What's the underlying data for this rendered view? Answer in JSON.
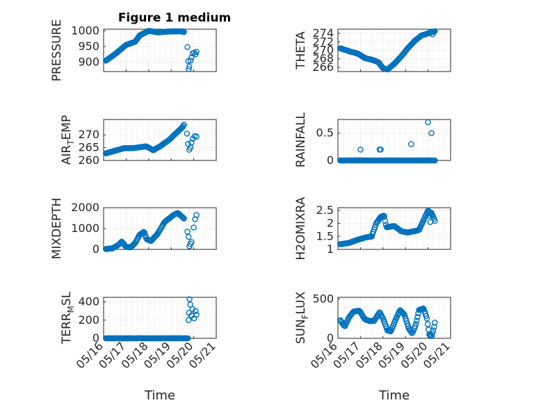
{
  "figure_title": "Figure 1 medium",
  "marker_color": "#0072BD",
  "chart_data": [
    {
      "id": "pressure",
      "type": "scatter",
      "ylabel": "PRESSURE",
      "title": "Figure 1 medium",
      "xlim": [
        0,
        5
      ],
      "ylim": [
        870,
        1005
      ],
      "yticks": [
        900,
        950,
        1000
      ],
      "gaps": [
        [
          3.6,
          3.85
        ]
      ],
      "keys": [
        [
          0.1,
          905
        ],
        [
          0.5,
          925
        ],
        [
          1.0,
          955
        ],
        [
          1.4,
          965
        ],
        [
          1.6,
          985
        ],
        [
          2.0,
          1000
        ],
        [
          2.4,
          995
        ],
        [
          3.0,
          998
        ],
        [
          3.5,
          998
        ],
        [
          3.6,
          995
        ]
      ],
      "extra": [
        [
          3.72,
          948
        ],
        [
          3.76,
          903
        ],
        [
          3.78,
          878
        ],
        [
          3.8,
          886
        ],
        [
          3.86,
          905
        ],
        [
          3.9,
          915
        ],
        [
          3.95,
          928
        ],
        [
          4.02,
          930
        ],
        [
          4.08,
          925
        ],
        [
          4.12,
          933
        ]
      ]
    },
    {
      "id": "theta",
      "type": "scatter",
      "ylabel": "THETA",
      "xlim": [
        0,
        5
      ],
      "ylim": [
        265,
        275
      ],
      "yticks": [
        266,
        268,
        270,
        272,
        274
      ],
      "keys": [
        [
          0.1,
          270.5
        ],
        [
          0.5,
          269.8
        ],
        [
          0.9,
          269.2
        ],
        [
          1.2,
          268.2
        ],
        [
          1.5,
          267.8
        ],
        [
          1.8,
          267.2
        ],
        [
          2.0,
          265.8
        ],
        [
          2.2,
          265.5
        ],
        [
          2.5,
          266.8
        ],
        [
          2.8,
          268.5
        ],
        [
          3.1,
          270.5
        ],
        [
          3.4,
          272.2
        ],
        [
          3.7,
          273.5
        ],
        [
          4.0,
          274
        ],
        [
          4.3,
          274.5
        ]
      ],
      "extra": [
        [
          4.1,
          274.3
        ],
        [
          4.2,
          273.8
        ]
      ]
    },
    {
      "id": "airtemp",
      "type": "scatter",
      "ylabel": "AIR_TEMP",
      "ylabel_main": "AIR",
      "ylabel_sub": "T",
      "ylabel_tail": "EMP",
      "xlim": [
        0,
        5
      ],
      "ylim": [
        260,
        276
      ],
      "yticks": [
        260,
        265,
        270
      ],
      "gaps": [
        [
          3.6,
          3.85
        ]
      ],
      "keys": [
        [
          0.1,
          262.8
        ],
        [
          0.5,
          263.8
        ],
        [
          0.9,
          264.8
        ],
        [
          1.3,
          264.8
        ],
        [
          1.7,
          265.3
        ],
        [
          1.9,
          265.5
        ],
        [
          2.2,
          264.0
        ],
        [
          2.5,
          265.5
        ],
        [
          2.9,
          268.0
        ],
        [
          3.2,
          270.5
        ],
        [
          3.5,
          273.0
        ],
        [
          3.62,
          274.8
        ]
      ],
      "extra": [
        [
          3.7,
          270.5
        ],
        [
          3.75,
          266.5
        ],
        [
          3.8,
          264.2
        ],
        [
          3.85,
          265.0
        ],
        [
          3.9,
          267.0
        ],
        [
          3.96,
          268.5
        ],
        [
          4.04,
          269.5
        ],
        [
          4.12,
          269.3
        ]
      ]
    },
    {
      "id": "rainfall",
      "type": "scatter",
      "ylabel": "RAINFALL",
      "xlim": [
        0,
        5
      ],
      "ylim": [
        0,
        0.75
      ],
      "yticks": [
        0,
        0.5
      ],
      "keys": [
        [
          0.1,
          0
        ],
        [
          4.3,
          0
        ]
      ],
      "extra": [
        [
          1.0,
          0.2
        ],
        [
          1.85,
          0.2
        ],
        [
          1.9,
          0.2
        ],
        [
          3.25,
          0.3
        ],
        [
          4.0,
          0.7
        ],
        [
          4.15,
          0.5
        ]
      ]
    },
    {
      "id": "mixdepth",
      "type": "scatter",
      "ylabel": "MIXDEPTH",
      "xlim": [
        0,
        5
      ],
      "ylim": [
        0,
        2000
      ],
      "yticks": [
        0,
        1000,
        2000
      ],
      "gaps": [
        [
          3.6,
          3.85
        ]
      ],
      "keys": [
        [
          0.1,
          20
        ],
        [
          0.4,
          50
        ],
        [
          0.7,
          250
        ],
        [
          0.8,
          380
        ],
        [
          1.0,
          120
        ],
        [
          1.2,
          100
        ],
        [
          1.4,
          300
        ],
        [
          1.6,
          700
        ],
        [
          1.8,
          850
        ],
        [
          1.9,
          500
        ],
        [
          2.1,
          400
        ],
        [
          2.4,
          750
        ],
        [
          2.7,
          1300
        ],
        [
          3.1,
          1650
        ],
        [
          3.3,
          1750
        ],
        [
          3.5,
          1550
        ],
        [
          3.65,
          1400
        ]
      ],
      "extra": [
        [
          3.72,
          850
        ],
        [
          3.77,
          600
        ],
        [
          3.81,
          150
        ],
        [
          3.85,
          260
        ],
        [
          3.9,
          350
        ],
        [
          4.0,
          1050
        ],
        [
          4.06,
          1450
        ],
        [
          4.12,
          1650
        ]
      ]
    },
    {
      "id": "h2omixra",
      "type": "scatter",
      "ylabel": "H2OMIXRA",
      "xlim": [
        0,
        5
      ],
      "ylim": [
        1.0,
        2.6
      ],
      "yticks": [
        1,
        1.5,
        2,
        2.5
      ],
      "keys": [
        [
          0.1,
          1.2
        ],
        [
          0.5,
          1.25
        ],
        [
          0.8,
          1.35
        ],
        [
          1.2,
          1.45
        ],
        [
          1.5,
          1.5
        ],
        [
          1.7,
          2.0
        ],
        [
          1.9,
          2.25
        ],
        [
          2.05,
          2.3
        ],
        [
          2.15,
          1.85
        ],
        [
          2.5,
          1.9
        ],
        [
          2.8,
          1.7
        ],
        [
          3.1,
          1.65
        ],
        [
          3.4,
          1.7
        ],
        [
          3.6,
          1.75
        ],
        [
          3.9,
          2.3
        ],
        [
          4.0,
          2.5
        ],
        [
          4.2,
          2.3
        ],
        [
          4.3,
          2.1
        ]
      ],
      "extra": [
        [
          4.05,
          2.3
        ],
        [
          4.1,
          2.05
        ],
        [
          4.15,
          2.4
        ]
      ]
    },
    {
      "id": "terrmsl",
      "type": "scatter",
      "ylabel": "TERR_MSL",
      "ylabel_main": "TERR",
      "ylabel_sub": "M",
      "ylabel_tail": "SL",
      "xlim": [
        0,
        5
      ],
      "ylim": [
        0,
        450
      ],
      "yticks": [
        0,
        200,
        400
      ],
      "xticks": [
        "05/16",
        "05/17",
        "05/18",
        "05/19",
        "05/20",
        "05/21"
      ],
      "xlabel": "Time",
      "keys": [
        [
          0.1,
          0
        ],
        [
          3.75,
          0
        ]
      ],
      "extra": [
        [
          3.77,
          200
        ],
        [
          3.79,
          280
        ],
        [
          3.81,
          430
        ],
        [
          3.85,
          370
        ],
        [
          3.9,
          250
        ],
        [
          3.95,
          320
        ],
        [
          4.02,
          220
        ],
        [
          4.08,
          300
        ],
        [
          4.12,
          260
        ]
      ]
    },
    {
      "id": "sunflux",
      "type": "scatter",
      "ylabel": "SUN_FLUX",
      "ylabel_main": "SUN",
      "ylabel_sub": "F",
      "ylabel_tail": "LUX",
      "xlim": [
        0,
        5
      ],
      "ylim": [
        0,
        520
      ],
      "yticks": [
        0,
        500
      ],
      "xticks": [
        "05/16",
        "05/17",
        "05/18",
        "05/19",
        "05/20",
        "05/21"
      ],
      "xlabel": "Time",
      "keys": [
        [
          0.1,
          230
        ],
        [
          0.3,
          150
        ],
        [
          0.5,
          270
        ],
        [
          0.7,
          340
        ],
        [
          0.95,
          350
        ],
        [
          1.2,
          240
        ],
        [
          1.4,
          220
        ],
        [
          1.6,
          220
        ],
        [
          1.85,
          330
        ],
        [
          2.0,
          250
        ],
        [
          2.2,
          100
        ],
        [
          2.35,
          90
        ],
        [
          2.55,
          230
        ],
        [
          2.75,
          360
        ],
        [
          2.95,
          300
        ],
        [
          3.15,
          120
        ],
        [
          3.3,
          60
        ],
        [
          3.45,
          170
        ],
        [
          3.6,
          360
        ],
        [
          3.8,
          380
        ],
        [
          3.95,
          250
        ],
        [
          4.05,
          50
        ],
        [
          4.15,
          20
        ],
        [
          4.25,
          120
        ],
        [
          4.3,
          200
        ]
      ],
      "extra": []
    }
  ]
}
